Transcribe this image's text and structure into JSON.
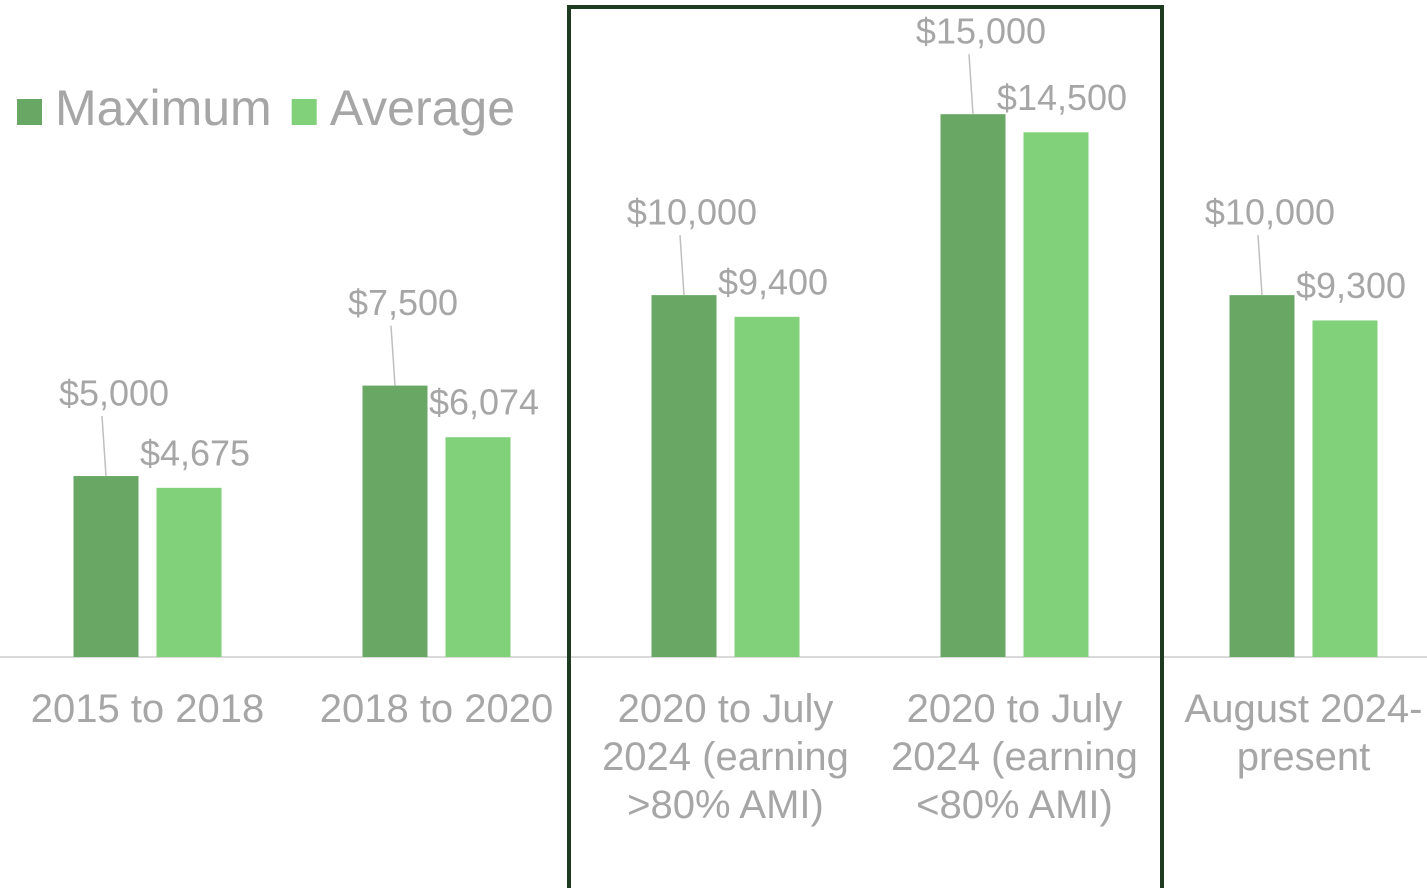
{
  "chart_data": {
    "type": "bar",
    "categories": [
      "2015 to 2018",
      "2018 to 2020",
      "2020 to July 2024 (earning >80% AMI)",
      "2020 to July 2024 (earning <80% AMI)",
      "August 2024-present"
    ],
    "series": [
      {
        "name": "Maximum",
        "color": "#68a764",
        "values": [
          5000,
          7500,
          10000,
          15000,
          10000
        ],
        "value_labels": [
          "$5,000",
          "$7,500",
          "$10,000",
          "$15,000",
          "$10,000"
        ]
      },
      {
        "name": "Average",
        "color": "#80d17a",
        "values": [
          4675,
          6074,
          9400,
          14500,
          9300
        ],
        "value_labels": [
          "$4,675",
          "$6,074",
          "$9,400",
          "$14,500",
          "$9,300"
        ]
      }
    ],
    "ylim": [
      0,
      16000
    ],
    "legend": "top-left"
  }
}
